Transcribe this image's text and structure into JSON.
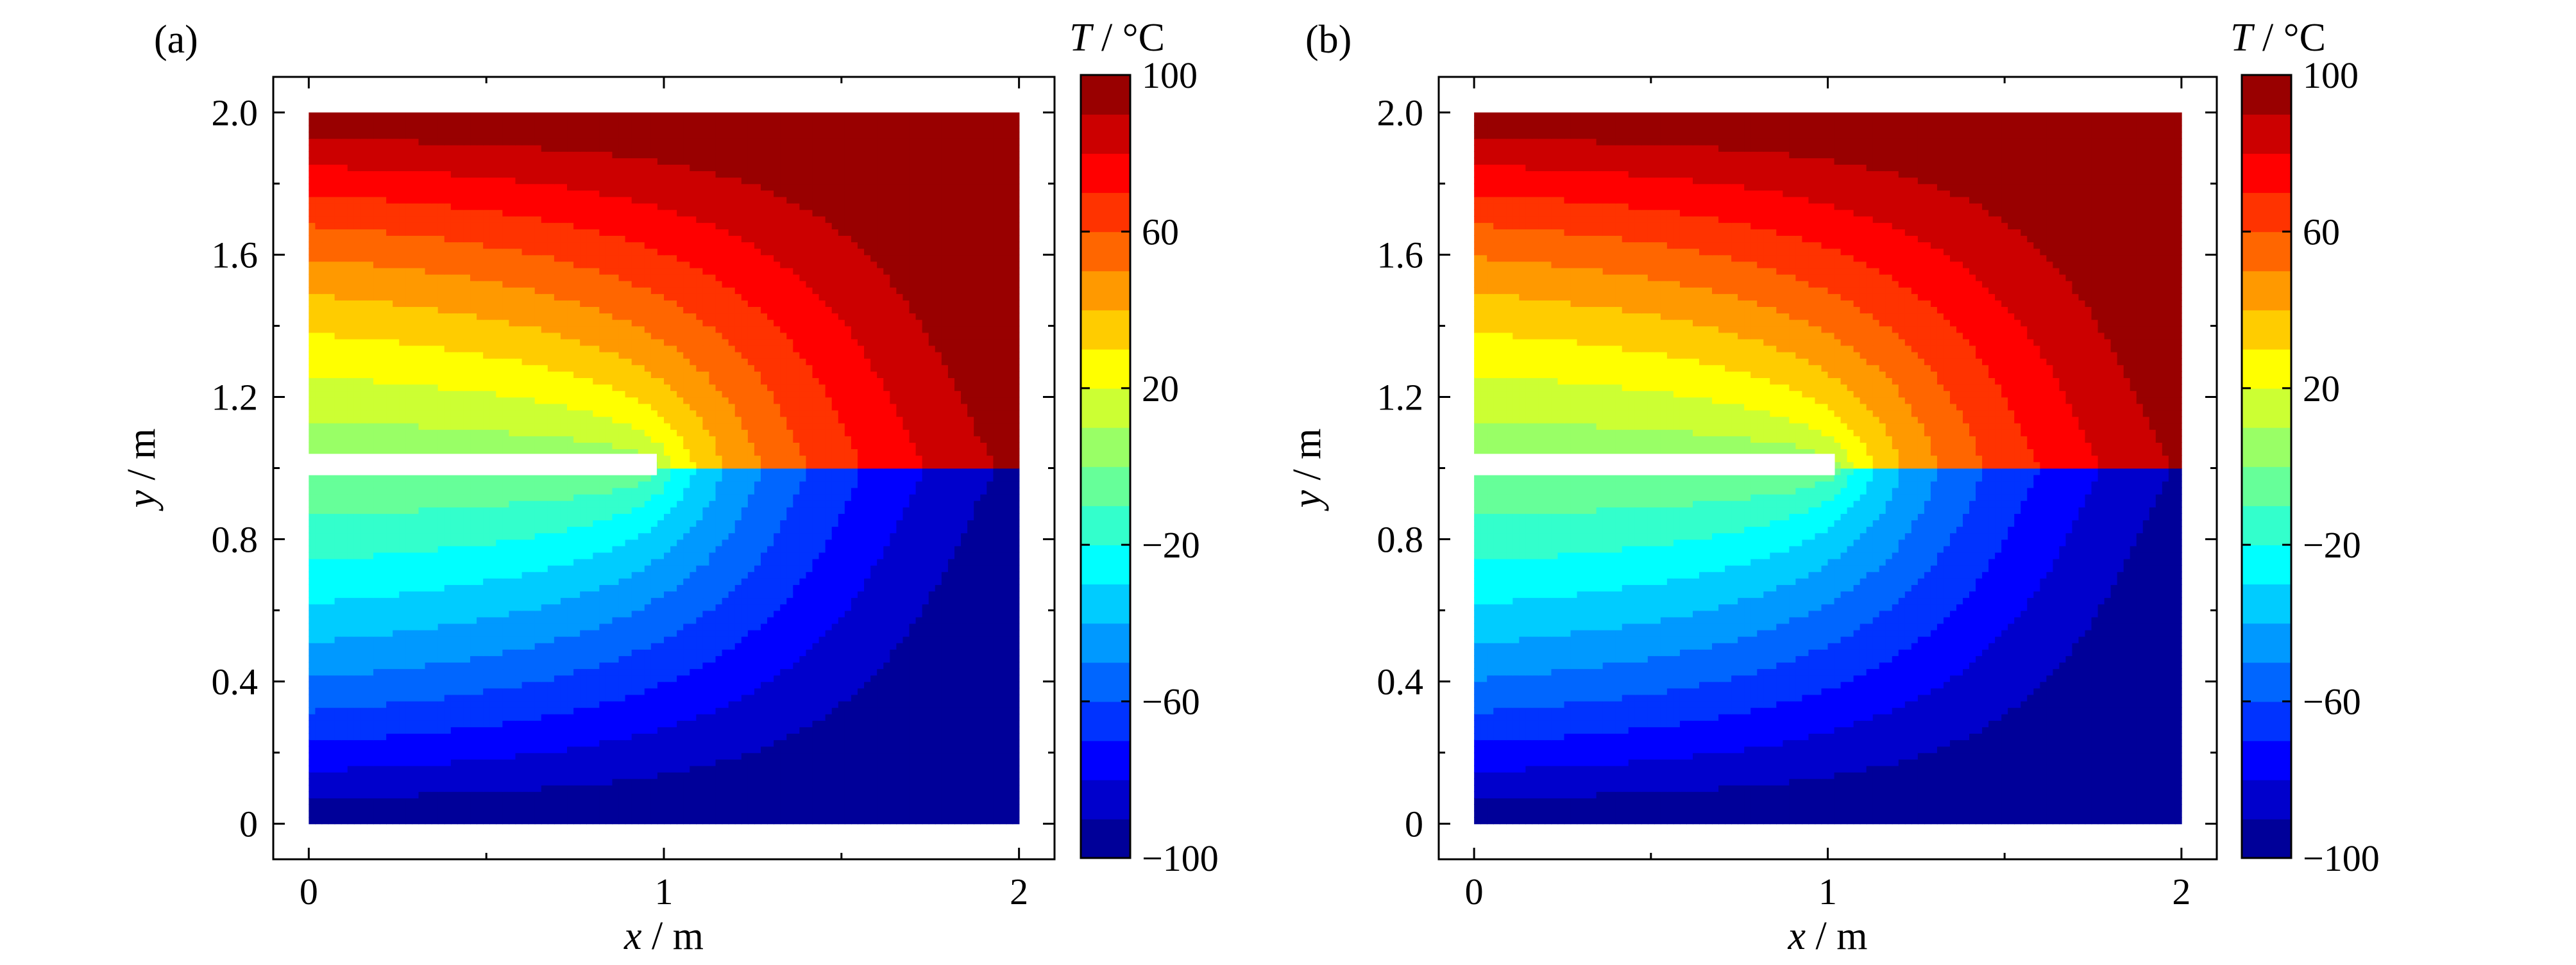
{
  "chart_data": [
    {
      "type": "heatmap",
      "panel_label": "(a)",
      "xlabel": {
        "var": "x",
        "unit": " / m"
      },
      "ylabel": {
        "var": "y",
        "unit": " / m"
      },
      "xlim": [
        -0.1,
        2.1
      ],
      "ylim": [
        -0.1,
        2.1
      ],
      "xticks": [
        0,
        1,
        2
      ],
      "xtick_labels": [
        "0",
        "1",
        "2"
      ],
      "yticks": [
        0,
        0.4,
        0.8,
        1.2,
        1.6,
        2.0
      ],
      "ytick_labels": [
        "0",
        "0.4",
        "0.8",
        "1.2",
        "1.6",
        "2.0"
      ],
      "domain": {
        "x": [
          0,
          2
        ],
        "y": [
          0,
          2
        ]
      },
      "crack": {
        "x_start": 0,
        "x_end": 0.98,
        "y_bottom": 0.98,
        "y_top": 1.04,
        "tip": [
          0.98,
          1.0
        ]
      },
      "field": {
        "quantity": "temperature",
        "unit": "°C",
        "description": "T = 100 at y=2, T = -100 at y=0, insulated crack from x=0 to tip",
        "top_value": 100,
        "bottom_value": -100
      },
      "colorbar": {
        "title_var": "T",
        "title_unit": " / °C",
        "range": [
          -100,
          100
        ],
        "ticks": [
          100,
          60,
          20,
          -20,
          -60,
          -100
        ],
        "tick_labels": [
          "100",
          "60",
          "20",
          "−20",
          "−60",
          "−100"
        ],
        "levels": 20,
        "colormap": "jet"
      }
    },
    {
      "type": "heatmap",
      "panel_label": "(b)",
      "xlabel": {
        "var": "x",
        "unit": " / m"
      },
      "ylabel": {
        "var": "y",
        "unit": " / m"
      },
      "xlim": [
        -0.1,
        2.1
      ],
      "ylim": [
        -0.1,
        2.1
      ],
      "xticks": [
        0,
        1,
        2
      ],
      "xtick_labels": [
        "0",
        "1",
        "2"
      ],
      "yticks": [
        0,
        0.4,
        0.8,
        1.2,
        1.6,
        2.0
      ],
      "ytick_labels": [
        "0",
        "0.4",
        "0.8",
        "1.2",
        "1.6",
        "2.0"
      ],
      "domain": {
        "x": [
          0,
          2
        ],
        "y": [
          0,
          2
        ]
      },
      "crack": {
        "x_start": 0,
        "x_end": 1.02,
        "y_bottom": 0.98,
        "y_top": 1.04,
        "tip": [
          1.02,
          1.0
        ]
      },
      "field": {
        "quantity": "temperature",
        "unit": "°C",
        "description": "T = 100 at y=2, T = -100 at y=0, insulated crack from x=0 to tip",
        "top_value": 100,
        "bottom_value": -100
      },
      "colorbar": {
        "title_var": "T",
        "title_unit": " / °C",
        "range": [
          -100,
          100
        ],
        "ticks": [
          100,
          60,
          20,
          -20,
          -60,
          -100
        ],
        "tick_labels": [
          "100",
          "60",
          "20",
          "−20",
          "−60",
          "−100"
        ],
        "levels": 20,
        "colormap": "jet"
      }
    }
  ]
}
